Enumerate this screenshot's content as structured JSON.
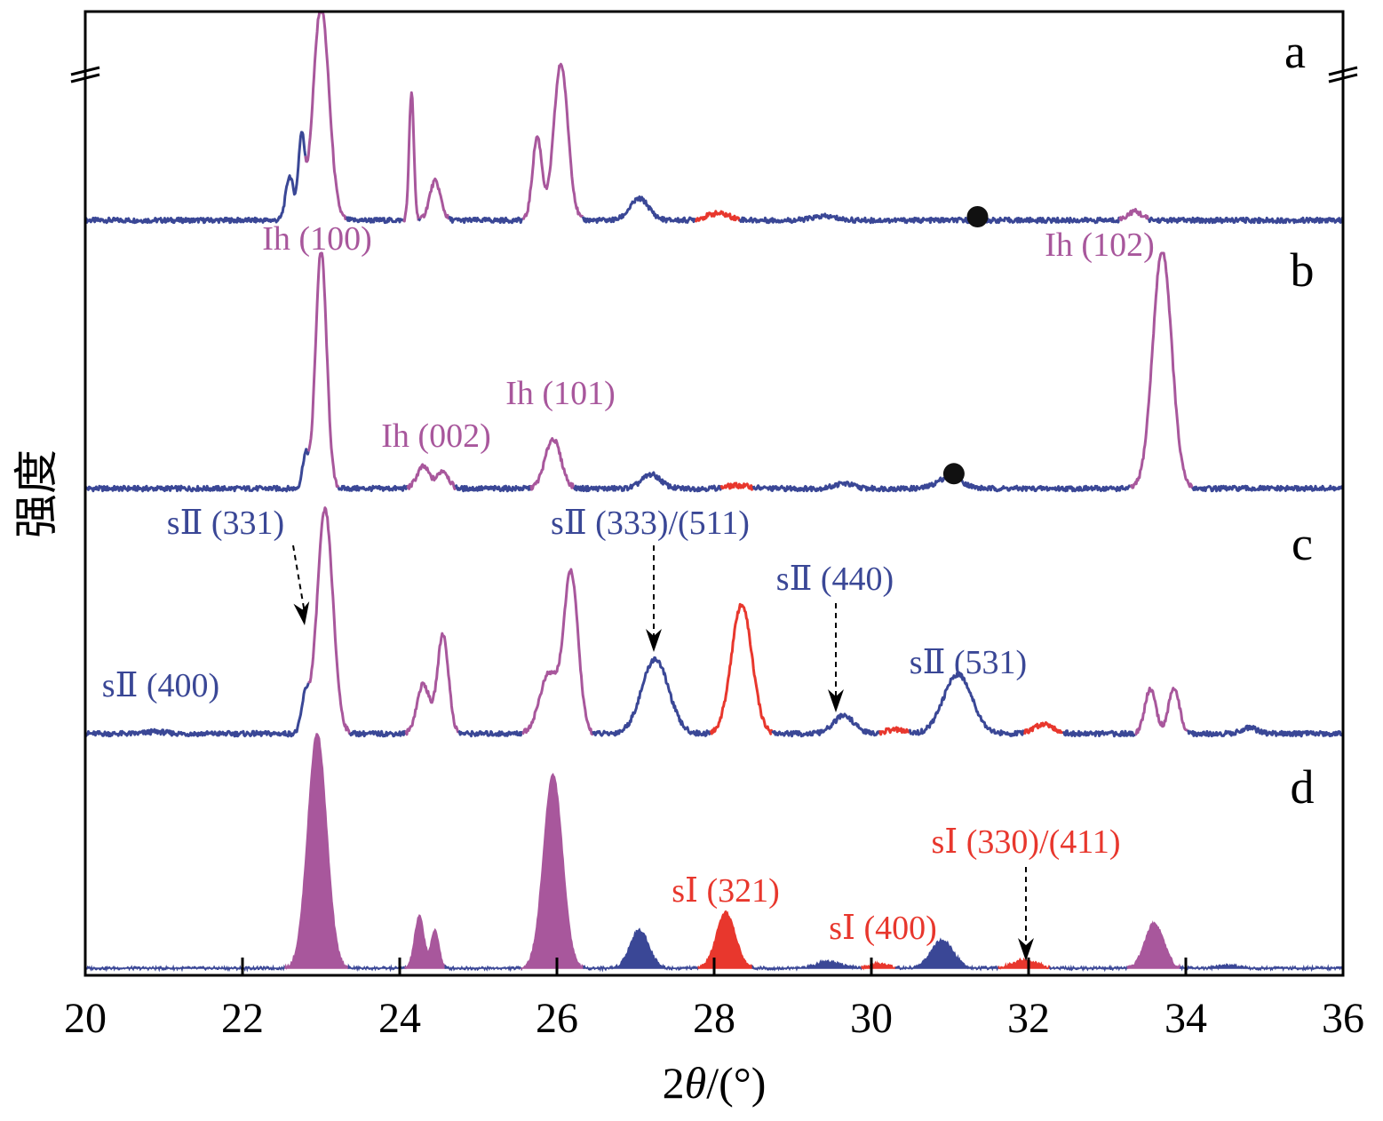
{
  "colors": {
    "ice_Ih": "#a8579c",
    "sII": "#3a4796",
    "sI": "#e8372d",
    "marker": "#111111",
    "axis": "#000000"
  },
  "chart_data": {
    "type": "line",
    "xlabel": "2θ/(°)",
    "ylabel": "强度",
    "xlim": [
      20,
      36
    ],
    "xticks": [
      "20",
      "22",
      "24",
      "26",
      "28",
      "30",
      "32",
      "34",
      "36"
    ],
    "panels": [
      {
        "label": "a",
        "peaks": [
          {
            "x": 22.6,
            "h": 0.45,
            "w": 0.05,
            "phase": "sII"
          },
          {
            "x": 22.75,
            "h": 0.8,
            "w": 0.04,
            "phase": "sII"
          },
          {
            "x": 23.0,
            "h": 2.2,
            "w": 0.1,
            "phase": "Ih"
          },
          {
            "x": 24.15,
            "h": 1.3,
            "w": 0.03,
            "phase": "Ih"
          },
          {
            "x": 24.45,
            "h": 0.4,
            "w": 0.07,
            "phase": "Ih"
          },
          {
            "x": 25.75,
            "h": 0.85,
            "w": 0.06,
            "phase": "Ih"
          },
          {
            "x": 26.05,
            "h": 1.6,
            "w": 0.09,
            "phase": "Ih"
          },
          {
            "x": 27.05,
            "h": 0.22,
            "w": 0.12,
            "phase": "sII"
          },
          {
            "x": 28.05,
            "h": 0.07,
            "w": 0.15,
            "phase": "sI"
          },
          {
            "x": 29.4,
            "h": 0.04,
            "w": 0.15,
            "phase": "sII"
          },
          {
            "x": 33.35,
            "h": 0.09,
            "w": 0.09,
            "phase": "Ih"
          }
        ],
        "markers": [
          31.35
        ],
        "broken_axis": true,
        "annotations": [
          {
            "text": "Ih (100)",
            "x": 22.9,
            "phase": "Ih"
          },
          {
            "text": "Ih (102)",
            "x": 33.25,
            "phase": "Ih"
          }
        ]
      },
      {
        "label": "b",
        "peaks": [
          {
            "x": 22.8,
            "h": 0.32,
            "w": 0.04,
            "phase": "sII"
          },
          {
            "x": 23.0,
            "h": 2.4,
            "w": 0.07,
            "phase": "Ih"
          },
          {
            "x": 24.3,
            "h": 0.22,
            "w": 0.08,
            "phase": "Ih"
          },
          {
            "x": 24.55,
            "h": 0.18,
            "w": 0.07,
            "phase": "Ih"
          },
          {
            "x": 25.95,
            "h": 0.5,
            "w": 0.1,
            "phase": "Ih"
          },
          {
            "x": 27.2,
            "h": 0.14,
            "w": 0.12,
            "phase": "sII"
          },
          {
            "x": 28.3,
            "h": 0.03,
            "w": 0.15,
            "phase": "sI"
          },
          {
            "x": 29.65,
            "h": 0.05,
            "w": 0.12,
            "phase": "sII"
          },
          {
            "x": 31.0,
            "h": 0.12,
            "w": 0.15,
            "phase": "sII"
          },
          {
            "x": 33.7,
            "h": 2.4,
            "w": 0.12,
            "phase": "Ih"
          }
        ],
        "markers": [
          31.05
        ],
        "annotations": [
          {
            "text": "Ih (002)",
            "x": 24.35,
            "phase": "Ih"
          },
          {
            "text": "Ih (101)",
            "x": 25.95,
            "phase": "Ih"
          }
        ]
      },
      {
        "label": "c",
        "peaks": [
          {
            "x": 20.9,
            "h": 0.02,
            "w": 0.12,
            "phase": "sII"
          },
          {
            "x": 22.8,
            "h": 0.35,
            "w": 0.05,
            "phase": "sII"
          },
          {
            "x": 23.05,
            "h": 2.25,
            "w": 0.1,
            "phase": "Ih"
          },
          {
            "x": 24.3,
            "h": 0.5,
            "w": 0.08,
            "phase": "Ih"
          },
          {
            "x": 24.55,
            "h": 1.0,
            "w": 0.07,
            "phase": "Ih"
          },
          {
            "x": 25.9,
            "h": 0.6,
            "w": 0.12,
            "phase": "Ih"
          },
          {
            "x": 26.18,
            "h": 1.6,
            "w": 0.09,
            "phase": "Ih"
          },
          {
            "x": 27.25,
            "h": 0.75,
            "w": 0.17,
            "phase": "sII"
          },
          {
            "x": 28.35,
            "h": 1.3,
            "w": 0.13,
            "phase": "sI"
          },
          {
            "x": 29.65,
            "h": 0.18,
            "w": 0.13,
            "phase": "sII"
          },
          {
            "x": 30.3,
            "h": 0.04,
            "w": 0.12,
            "phase": "sI"
          },
          {
            "x": 31.1,
            "h": 0.6,
            "w": 0.18,
            "phase": "sII"
          },
          {
            "x": 32.2,
            "h": 0.1,
            "w": 0.12,
            "phase": "sI"
          },
          {
            "x": 33.55,
            "h": 0.45,
            "w": 0.07,
            "phase": "Ih"
          },
          {
            "x": 33.85,
            "h": 0.45,
            "w": 0.07,
            "phase": "Ih"
          },
          {
            "x": 34.8,
            "h": 0.06,
            "w": 0.1,
            "phase": "sII"
          }
        ],
        "annotations": [
          {
            "text": "sⅡ (331)",
            "x": 22.8,
            "phase": "sII",
            "arrow": true
          },
          {
            "text": "sⅡ (333)/(511)",
            "x": 27.25,
            "phase": "sII",
            "arrow": true
          },
          {
            "text": "sⅡ (440)",
            "x": 29.65,
            "phase": "sII",
            "arrow": true
          },
          {
            "text": "sⅡ (531)",
            "x": 31.1,
            "phase": "sII"
          },
          {
            "text": "sⅡ (400)",
            "x": 20.8,
            "phase": "sII"
          }
        ]
      },
      {
        "label": "d",
        "filled": true,
        "peaks": [
          {
            "x": 22.95,
            "h": 3.4,
            "w": 0.12,
            "phase": "Ih"
          },
          {
            "x": 24.25,
            "h": 0.75,
            "w": 0.06,
            "phase": "Ih"
          },
          {
            "x": 24.45,
            "h": 0.55,
            "w": 0.05,
            "phase": "Ih"
          },
          {
            "x": 25.95,
            "h": 2.8,
            "w": 0.12,
            "phase": "Ih"
          },
          {
            "x": 27.05,
            "h": 0.55,
            "w": 0.12,
            "phase": "sII"
          },
          {
            "x": 28.15,
            "h": 0.8,
            "w": 0.12,
            "phase": "sI"
          },
          {
            "x": 29.45,
            "h": 0.1,
            "w": 0.15,
            "phase": "sII"
          },
          {
            "x": 30.1,
            "h": 0.06,
            "w": 0.12,
            "phase": "sI"
          },
          {
            "x": 30.9,
            "h": 0.4,
            "w": 0.14,
            "phase": "sII"
          },
          {
            "x": 31.95,
            "h": 0.12,
            "w": 0.15,
            "phase": "sI"
          },
          {
            "x": 33.6,
            "h": 0.65,
            "w": 0.12,
            "phase": "Ih"
          },
          {
            "x": 34.55,
            "h": 0.04,
            "w": 0.12,
            "phase": "sII"
          }
        ],
        "annotations": [
          {
            "text": "sⅠ (321)",
            "x": 28.15,
            "phase": "sI"
          },
          {
            "text": "sⅠ (400)",
            "x": 30.0,
            "phase": "sI"
          },
          {
            "text": "sⅠ (330)/(411)",
            "x": 31.95,
            "phase": "sI",
            "arrow": true
          }
        ]
      }
    ]
  }
}
